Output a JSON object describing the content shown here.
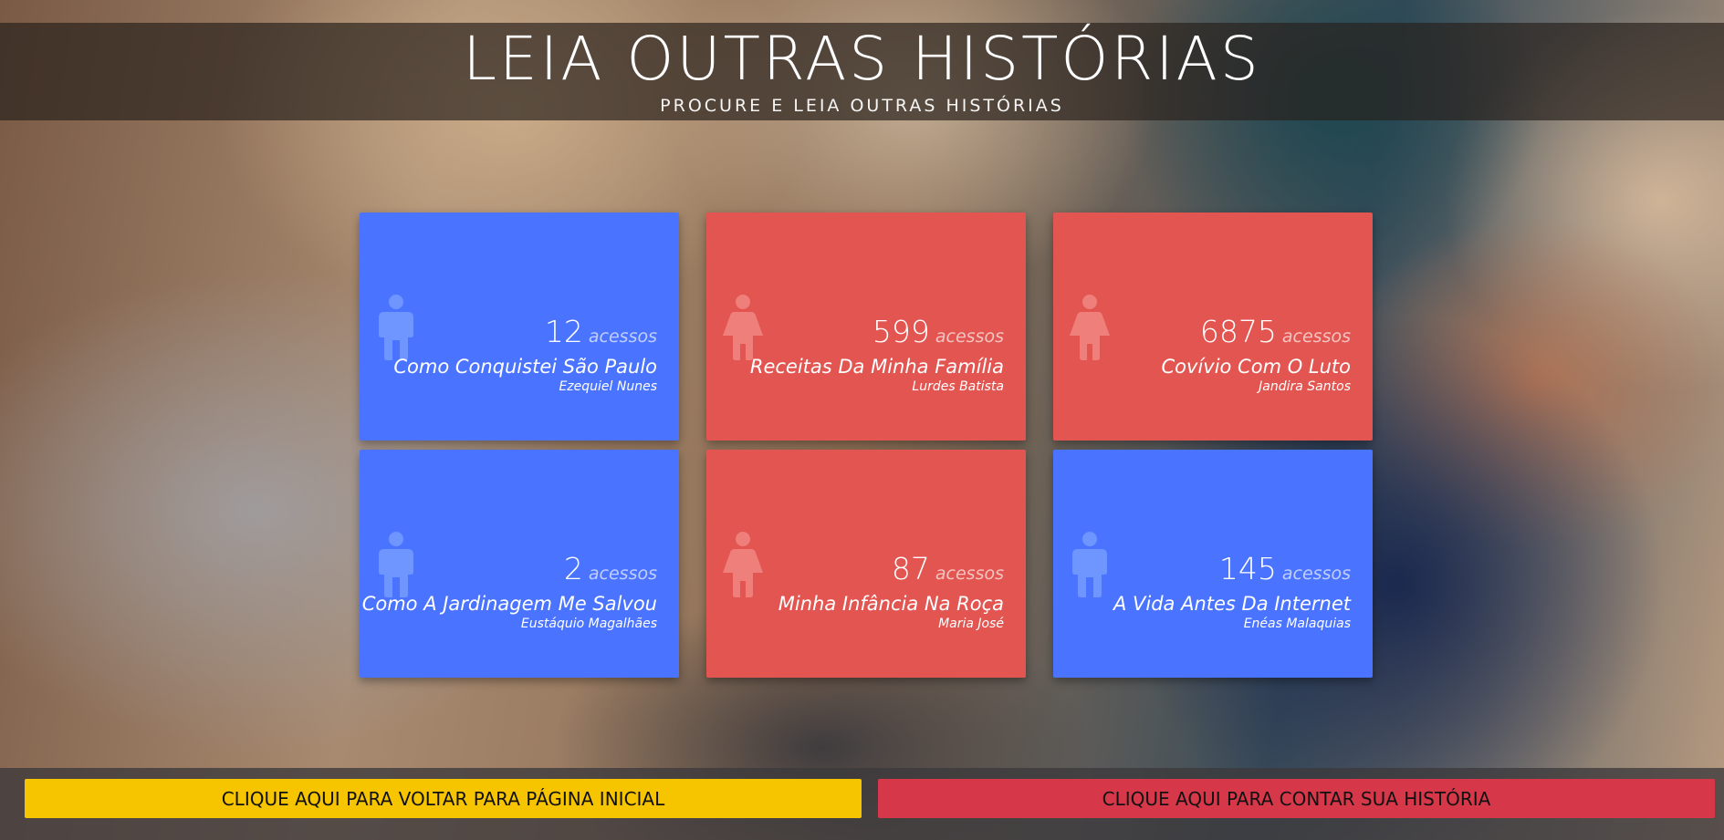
{
  "header": {
    "title": "LEIA OUTRAS HISTÓRIAS",
    "subtitle": "PROCURE E LEIA OUTRAS HISTÓRIAS"
  },
  "stories": [
    {
      "count": "12",
      "count_label": "acessos",
      "title": "Como Conquistei São Paulo",
      "author": "Ezequiel Nunes",
      "gender": "male",
      "color": "#4a74ff",
      "icon": "male-person-icon"
    },
    {
      "count": "599",
      "count_label": "acessos",
      "title": "Receitas Da Minha Família",
      "author": "Lurdes Batista",
      "gender": "female",
      "color": "#e35550",
      "icon": "female-person-icon"
    },
    {
      "count": "6875",
      "count_label": "acessos",
      "title": "Covívio Com O Luto",
      "author": "Jandira Santos",
      "gender": "female",
      "color": "#e35550",
      "icon": "female-person-icon"
    },
    {
      "count": "2",
      "count_label": "acessos",
      "title": "Como A Jardinagem Me Salvou",
      "author": "Eustáquio Magalhães",
      "gender": "male",
      "color": "#4a74ff",
      "icon": "male-person-icon"
    },
    {
      "count": "87",
      "count_label": "acessos",
      "title": "Minha Infância Na Roça",
      "author": "Maria José",
      "gender": "female",
      "color": "#e35550",
      "icon": "female-person-icon"
    },
    {
      "count": "145",
      "count_label": "acessos",
      "title": "A Vida Antes Da Internet",
      "author": "Enéas Malaquias",
      "gender": "male",
      "color": "#4a74ff",
      "icon": "male-person-icon"
    }
  ],
  "footer": {
    "home_button": "CLIQUE AQUI PARA VOLTAR PARA PÁGINA INICIAL",
    "tell_button": "CLIQUE AQUI PARA CONTAR SUA HISTÓRIA",
    "home_color": "#f6c500",
    "tell_color": "#d6384a"
  }
}
